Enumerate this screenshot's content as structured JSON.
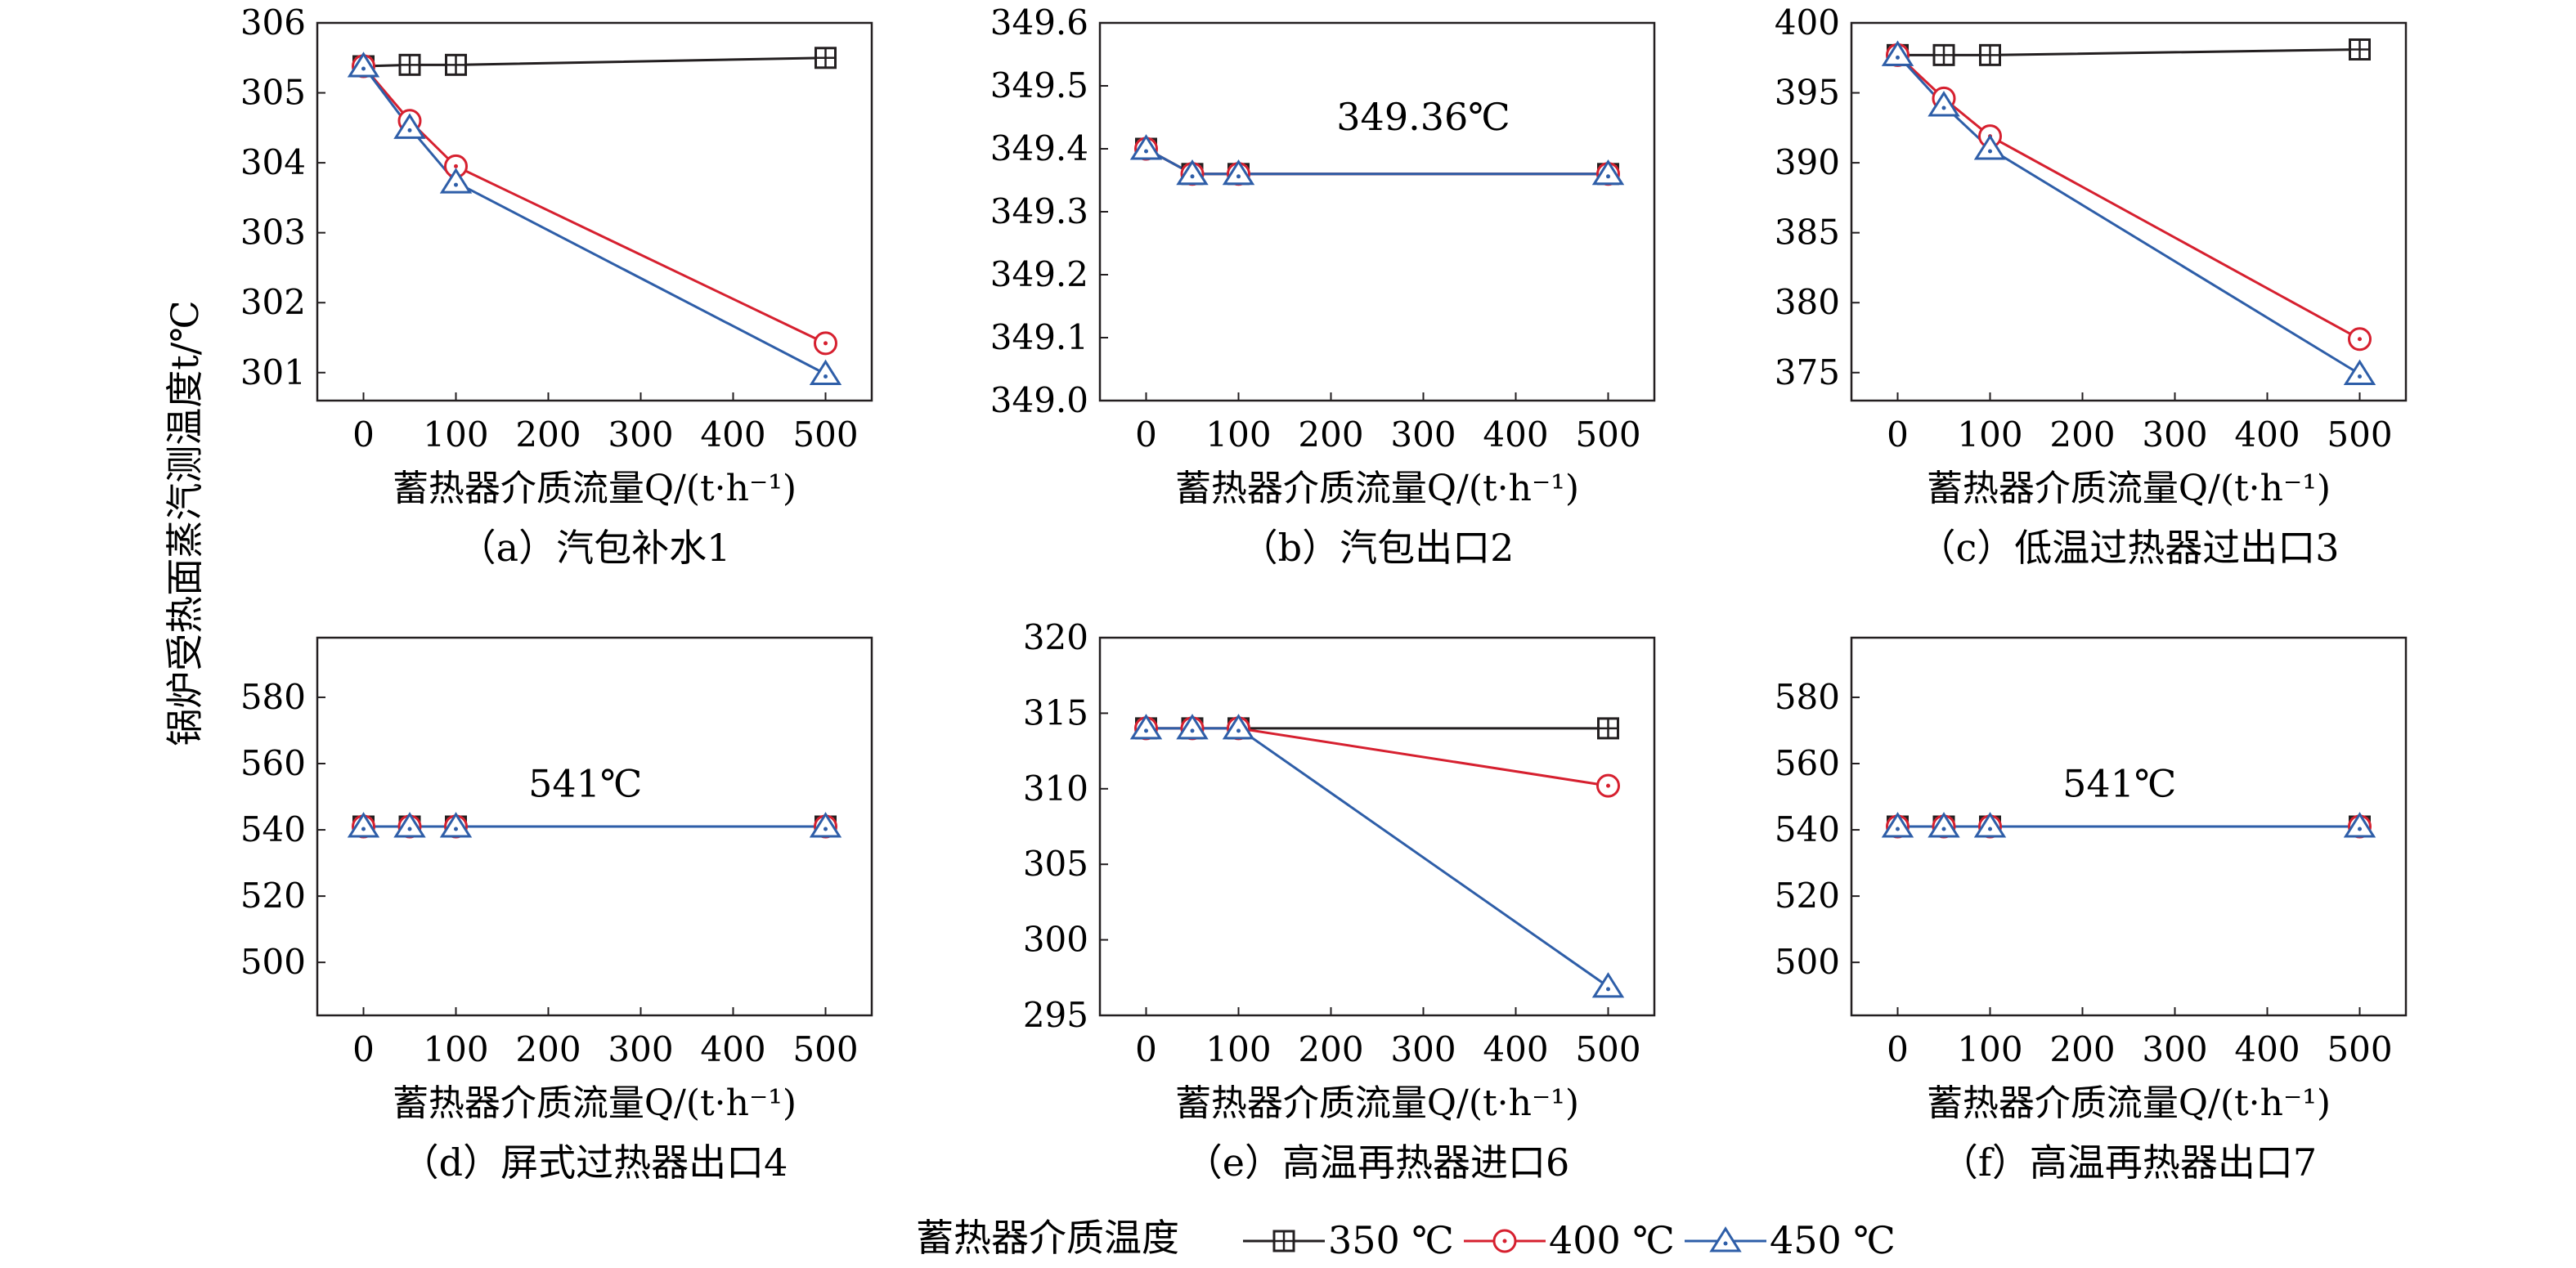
{
  "figure": {
    "y_axis_label": "锅炉受热面蒸汽测温度t/℃",
    "legend": {
      "title": "蓄热器介质温度",
      "items": [
        {
          "label": "350 ℃",
          "color": "#231f20",
          "marker": "square-plus"
        },
        {
          "label": "400 ℃",
          "color": "#d6202f",
          "marker": "circle-dot"
        },
        {
          "label": "450 ℃",
          "color": "#2e5ea8",
          "marker": "triangle-dot"
        }
      ]
    }
  },
  "chart_data": [
    {
      "type": "line",
      "id": "a",
      "caption": "（a）汽包补水1",
      "xlabel": "蓄热器介质流量Q/(t·h⁻¹)",
      "x": [
        0,
        50,
        100,
        500
      ],
      "xlim": [
        -50,
        550
      ],
      "xticks": [
        0,
        100,
        200,
        300,
        400,
        500
      ],
      "xtick_labels": [
        "0",
        "100",
        "200",
        "300",
        "400",
        "500"
      ],
      "ylim": [
        300.6,
        306
      ],
      "yticks": [
        301,
        302,
        303,
        304,
        305,
        306
      ],
      "ytick_labels": [
        "301",
        "302",
        "303",
        "304",
        "305",
        "306"
      ],
      "series": [
        {
          "name": "350 ℃",
          "values": [
            305.38,
            305.4,
            305.4,
            305.5
          ]
        },
        {
          "name": "400 ℃",
          "values": [
            305.38,
            304.6,
            303.95,
            301.42
          ]
        },
        {
          "name": "450 ℃",
          "values": [
            305.38,
            304.5,
            303.72,
            300.98
          ]
        }
      ],
      "annotation": ""
    },
    {
      "type": "line",
      "id": "b",
      "caption": "（b）汽包出口2",
      "xlabel": "蓄热器介质流量Q/(t·h⁻¹)",
      "x": [
        0,
        50,
        100,
        500
      ],
      "xlim": [
        -50,
        550
      ],
      "xticks": [
        0,
        100,
        200,
        300,
        400,
        500
      ],
      "xtick_labels": [
        "0",
        "100",
        "200",
        "300",
        "400",
        "500"
      ],
      "ylim": [
        349.0,
        349.6
      ],
      "yticks": [
        349.0,
        349.1,
        349.2,
        349.3,
        349.4,
        349.5,
        349.6
      ],
      "ytick_labels": [
        "349.0",
        "349.1",
        "349.2",
        "349.3",
        "349.4",
        "349.5",
        "349.6"
      ],
      "series": [
        {
          "name": "350 ℃",
          "values": [
            349.4,
            349.36,
            349.36,
            349.36
          ]
        },
        {
          "name": "400 ℃",
          "values": [
            349.4,
            349.36,
            349.36,
            349.36
          ]
        },
        {
          "name": "450 ℃",
          "values": [
            349.4,
            349.36,
            349.36,
            349.36
          ]
        }
      ],
      "annotation": "349.36℃",
      "annotation_pos": {
        "x": 300,
        "y": 349.43
      }
    },
    {
      "type": "line",
      "id": "c",
      "caption": "（c）低温过热器过出口3",
      "xlabel": "蓄热器介质流量Q/(t·h⁻¹)",
      "x": [
        0,
        50,
        100,
        500
      ],
      "xlim": [
        -50,
        550
      ],
      "xticks": [
        0,
        100,
        200,
        300,
        400,
        500
      ],
      "xtick_labels": [
        "0",
        "100",
        "200",
        "300",
        "400",
        "500"
      ],
      "ylim": [
        373,
        400
      ],
      "yticks": [
        375,
        380,
        385,
        390,
        395,
        400
      ],
      "ytick_labels": [
        "375",
        "380",
        "385",
        "390",
        "395",
        "400"
      ],
      "series": [
        {
          "name": "350 ℃",
          "values": [
            397.7,
            397.7,
            397.7,
            398.1
          ]
        },
        {
          "name": "400 ℃",
          "values": [
            397.7,
            394.6,
            391.9,
            377.4
          ]
        },
        {
          "name": "450 ℃",
          "values": [
            397.7,
            394.1,
            391.0,
            374.9
          ]
        }
      ],
      "annotation": ""
    },
    {
      "type": "line",
      "id": "d",
      "caption": "（d）屏式过热器出口4",
      "xlabel": "蓄热器介质流量Q/(t·h⁻¹)",
      "x": [
        0,
        50,
        100,
        500
      ],
      "xlim": [
        -50,
        550
      ],
      "xticks": [
        0,
        100,
        200,
        300,
        400,
        500
      ],
      "xtick_labels": [
        "0",
        "100",
        "200",
        "300",
        "400",
        "500"
      ],
      "ylim": [
        484,
        598
      ],
      "yticks": [
        500,
        520,
        540,
        560,
        580
      ],
      "ytick_labels": [
        "500",
        "520",
        "540",
        "560",
        "580"
      ],
      "series": [
        {
          "name": "350 ℃",
          "values": [
            541,
            541,
            541,
            541
          ]
        },
        {
          "name": "400 ℃",
          "values": [
            541,
            541,
            541,
            541
          ]
        },
        {
          "name": "450 ℃",
          "values": [
            541,
            541,
            541,
            541
          ]
        }
      ],
      "annotation": "541℃",
      "annotation_pos": {
        "x": 240,
        "y": 550
      }
    },
    {
      "type": "line",
      "id": "e",
      "caption": "（e）高温再热器进口6",
      "xlabel": "蓄热器介质流量Q/(t·h⁻¹)",
      "x": [
        0,
        50,
        100,
        500
      ],
      "xlim": [
        -50,
        550
      ],
      "xticks": [
        0,
        100,
        200,
        300,
        400,
        500
      ],
      "xtick_labels": [
        "0",
        "100",
        "200",
        "300",
        "400",
        "500"
      ],
      "ylim": [
        295,
        320
      ],
      "yticks": [
        295,
        300,
        305,
        310,
        315,
        320
      ],
      "ytick_labels": [
        "295",
        "300",
        "305",
        "310",
        "315",
        "320"
      ],
      "series": [
        {
          "name": "350 ℃",
          "values": [
            314,
            314,
            314,
            314
          ]
        },
        {
          "name": "400 ℃",
          "values": [
            314,
            314,
            314,
            310.2
          ]
        },
        {
          "name": "450 ℃",
          "values": [
            314,
            314,
            314,
            296.9
          ]
        }
      ],
      "annotation": ""
    },
    {
      "type": "line",
      "id": "f",
      "caption": "（f）高温再热器出口7",
      "xlabel": "蓄热器介质流量Q/(t·h⁻¹)",
      "x": [
        0,
        50,
        100,
        500
      ],
      "xlim": [
        -50,
        550
      ],
      "xticks": [
        0,
        100,
        200,
        300,
        400,
        500
      ],
      "xtick_labels": [
        "0",
        "100",
        "200",
        "300",
        "400",
        "500"
      ],
      "ylim": [
        484,
        598
      ],
      "yticks": [
        500,
        520,
        540,
        560,
        580
      ],
      "ytick_labels": [
        "500",
        "520",
        "540",
        "560",
        "580"
      ],
      "series": [
        {
          "name": "350 ℃",
          "values": [
            541,
            541,
            541,
            541
          ]
        },
        {
          "name": "400 ℃",
          "values": [
            541,
            541,
            541,
            541
          ]
        },
        {
          "name": "450 ℃",
          "values": [
            541,
            541,
            541,
            541
          ]
        }
      ],
      "annotation": "541℃",
      "annotation_pos": {
        "x": 240,
        "y": 550
      }
    }
  ]
}
